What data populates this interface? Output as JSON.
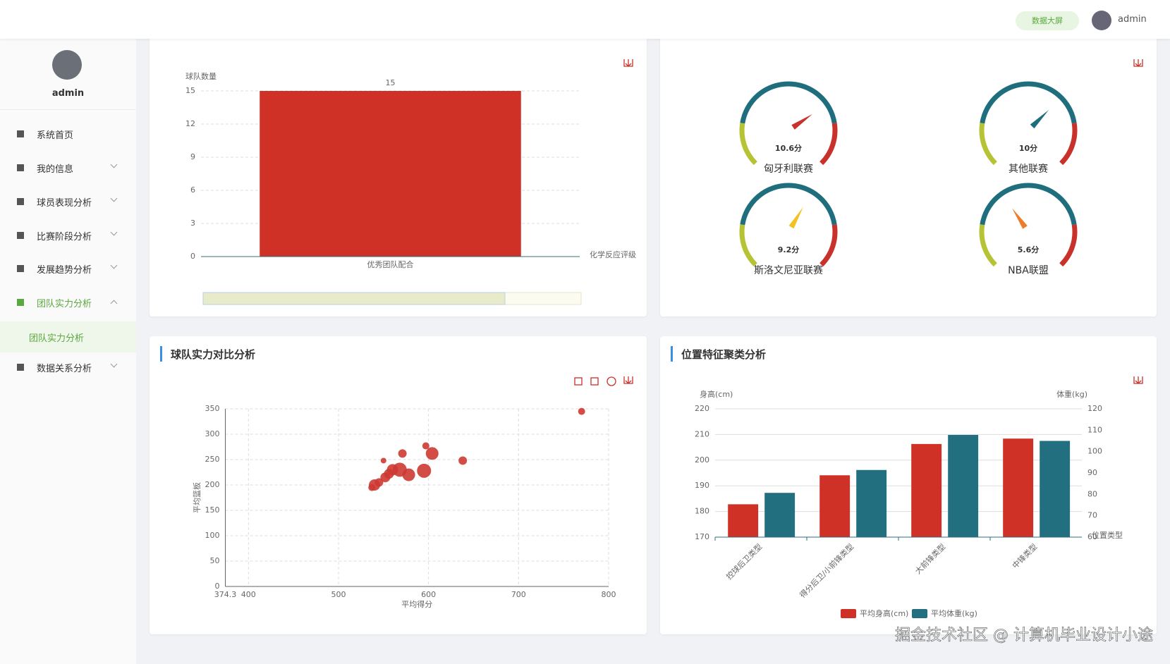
{
  "header": {
    "screen_button": "数据大屏",
    "user": "admin"
  },
  "sidebar": {
    "user": "admin",
    "menu": [
      "系统首页",
      "我的信息",
      "球员表现分析",
      "比赛阶段分析",
      "发展趋势分析",
      "团队实力分析",
      "数据关系分析"
    ],
    "submenu": "团队实力分析"
  },
  "chart_data": [
    {
      "type": "bar",
      "y_axis_name": "球队数量",
      "x_axis_name": "化学反应评级",
      "categories": [
        "优秀团队配合"
      ],
      "values": [
        15
      ],
      "color": "#cf3127",
      "ylim": [
        0,
        15
      ],
      "yticks": [
        0,
        3,
        6,
        9,
        12,
        15
      ],
      "grid": true,
      "data_labels": true
    },
    {
      "type": "gauge",
      "range": [
        0,
        15
      ],
      "axis_colors": [
        "#b6c334",
        "#1f6e7e",
        "#c9312b"
      ],
      "names": [
        "匈牙利联赛",
        "其他联赛",
        "斯洛文尼亚联赛",
        "NBA联盟"
      ],
      "values": [
        10.6,
        10,
        9.2,
        5.6
      ],
      "value_labels": [
        "10.6分",
        "10分",
        "9.2分",
        "5.6分"
      ],
      "pointer_colors": [
        "#c9312b",
        "#1f6e7e",
        "#f2c31f",
        "#ee7c28"
      ]
    },
    {
      "type": "scatter",
      "title": "球队实力对比分析",
      "x_axis_name": "平均得分",
      "y_axis_name": "平均篮板",
      "color": "#cd3a32",
      "x": [
        537,
        540,
        545,
        552,
        556,
        560,
        568,
        578,
        595,
        571,
        550,
        597,
        604,
        638,
        770
      ],
      "values": [
        195,
        200,
        205,
        215,
        222,
        230,
        230,
        220,
        228,
        262,
        248,
        277,
        262,
        248,
        345
      ],
      "sizes": [
        5,
        8,
        6,
        7,
        7,
        8,
        10,
        9,
        10,
        6,
        4,
        5,
        9,
        6,
        5
      ],
      "xlim": [
        374.3,
        800
      ],
      "xticks": [
        374.3,
        400,
        500,
        600,
        700,
        800
      ],
      "ylim": [
        0,
        350
      ],
      "yticks": [
        0,
        50,
        100,
        150,
        200,
        250,
        300,
        350
      ],
      "grid": true
    },
    {
      "type": "bar",
      "title": "位置特征聚类分析",
      "y_axis_name": "身高(cm)",
      "y2_axis_name": "体重(kg)",
      "x_axis_name": "位置类型",
      "categories": [
        "控球后卫类型",
        "得分后卫/小前锋类型",
        "大前锋类型",
        "中锋类型"
      ],
      "series": [
        {
          "name": "平均身高(cm)",
          "color": "#cf3127",
          "values": [
            182.8,
            194.1,
            206.3,
            208.4
          ]
        },
        {
          "name": "平均体重(kg)",
          "color": "#216f7f",
          "axis": "y2",
          "values": [
            80.7,
            91.4,
            107.8,
            105
          ]
        }
      ],
      "ylim": [
        170,
        220
      ],
      "yticks": [
        170,
        180,
        190,
        200,
        210,
        220
      ],
      "y2lim": [
        60,
        120
      ],
      "y2ticks": [
        60,
        70,
        80,
        90,
        100,
        110,
        120
      ],
      "grid": true,
      "xlabel_rotation": 45
    }
  ],
  "watermark": "掘金技术社区 @ 计算机毕业设计小途"
}
